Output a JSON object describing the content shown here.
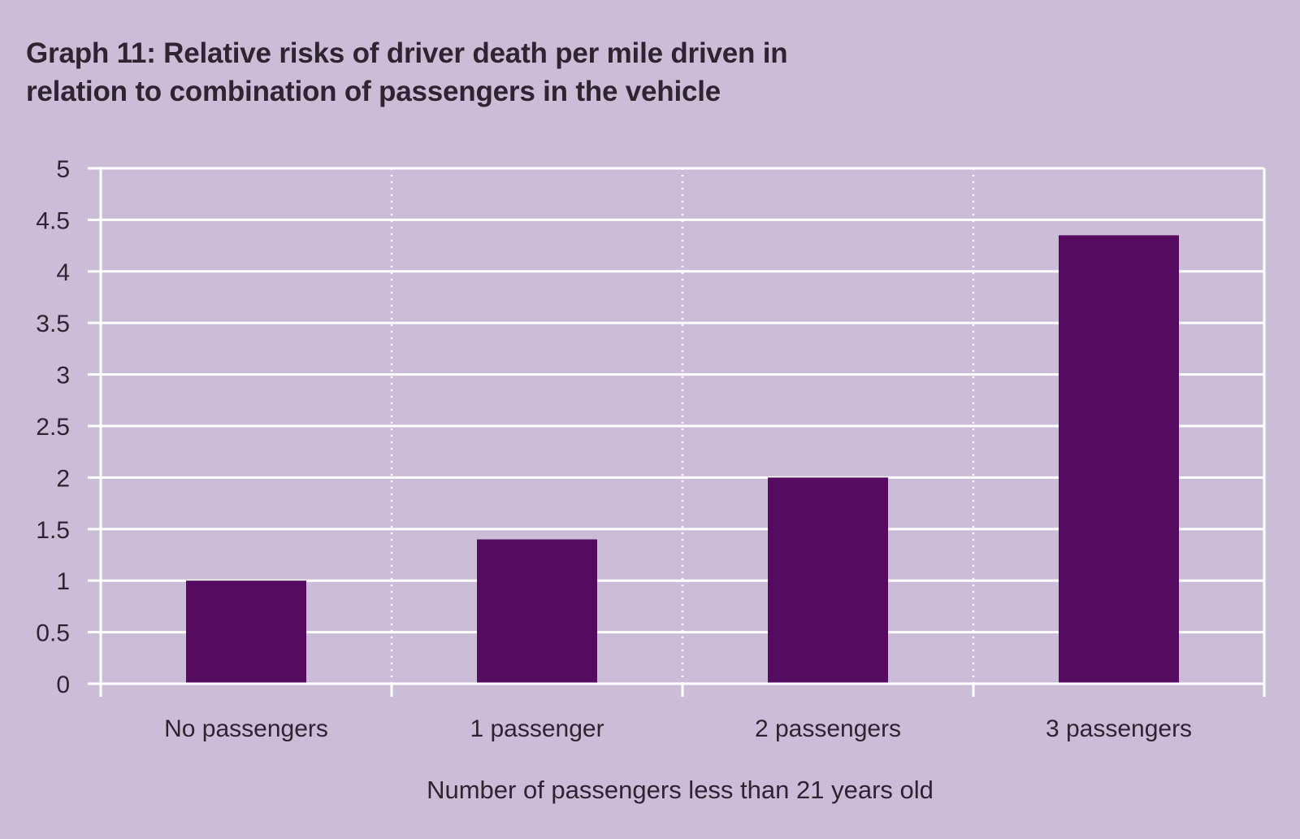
{
  "chart_data": {
    "type": "bar",
    "title": "Graph 11: Relative risks of driver death per mile driven in relation to combination of passengers in the vehicle",
    "xlabel": "Number of passengers less than 21 years old",
    "ylabel": "",
    "categories": [
      "No passengers",
      "1 passenger",
      "2 passengers",
      "3 passengers"
    ],
    "values": [
      1.0,
      1.4,
      2.0,
      4.35
    ],
    "ylim": [
      0,
      5
    ],
    "yticks": [
      0,
      0.5,
      1,
      1.5,
      2,
      2.5,
      3,
      3.5,
      4,
      4.5,
      5
    ],
    "ytick_labels": [
      "0",
      "0.5",
      "1",
      "1.5",
      "2",
      "2.5",
      "3",
      "3.5",
      "4",
      "4.5",
      "5"
    ],
    "grid": true,
    "legend": "none"
  },
  "colors": {
    "background": "#cbbcd7",
    "bar": "#550b60",
    "grid": "#ffffff",
    "text": "#2e2432"
  }
}
